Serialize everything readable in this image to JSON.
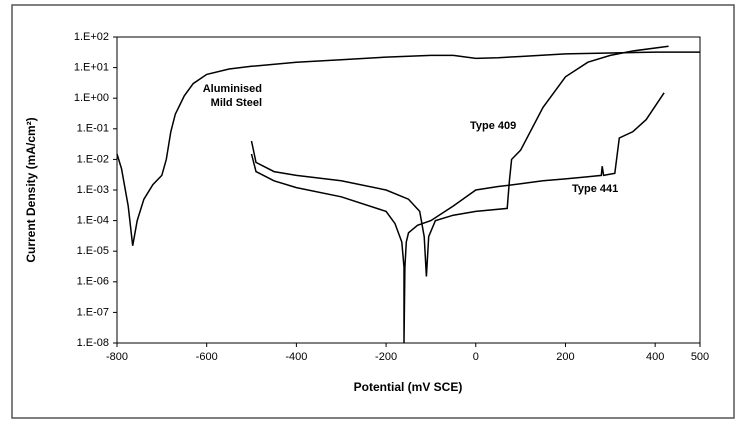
{
  "chart_data": {
    "type": "line",
    "yscale": "log",
    "grid": false,
    "xlabel": "Potential (mV SCE)",
    "ylabel": "Current Density (mA/cm²)",
    "xlim": [
      -800,
      500
    ],
    "xticks": [
      -800,
      -600,
      -400,
      -200,
      0,
      200,
      400,
      500
    ],
    "ylim": [
      1e-08,
      100
    ],
    "yticks": [
      {
        "value": 1e-08,
        "label": "1.E-08"
      },
      {
        "value": 1e-07,
        "label": "1.E-07"
      },
      {
        "value": 1e-06,
        "label": "1.E-06"
      },
      {
        "value": 1e-05,
        "label": "1.E-05"
      },
      {
        "value": 0.0001,
        "label": "1.E-04"
      },
      {
        "value": 0.001,
        "label": "1.E-03"
      },
      {
        "value": 0.01,
        "label": "1.E-02"
      },
      {
        "value": 0.1,
        "label": "1.E-01"
      },
      {
        "value": 1,
        "label": "1.E+00"
      },
      {
        "value": 10,
        "label": "1.E+01"
      },
      {
        "value": 100,
        "label": "1.E+02"
      }
    ],
    "series": [
      {
        "color": "#000000",
        "x": [
          -800,
          -790,
          -775,
          -765,
          -755,
          -740,
          -720,
          -700,
          -690,
          -680,
          -670,
          -660,
          -650,
          -630,
          -600,
          -550,
          -500,
          -400,
          -300,
          -200,
          -100,
          -50,
          0,
          50,
          100,
          200,
          300,
          400,
          500
        ],
        "values": [
          0.015,
          0.005,
          0.0003,
          1.5e-05,
          0.0001,
          0.0005,
          0.0015,
          0.003,
          0.01,
          0.08,
          0.3,
          0.6,
          1.2,
          3,
          6,
          9,
          11,
          15,
          18,
          22,
          25,
          25,
          20,
          21,
          23,
          28,
          30,
          32,
          32
        ]
      },
      {
        "color": "#000000",
        "x": [
          -500,
          -490,
          -450,
          -400,
          -300,
          -200,
          -150,
          -125,
          -115,
          -110,
          -105,
          -90,
          -50,
          0,
          70,
          75,
          80,
          100,
          150,
          200,
          250,
          300,
          350,
          430
        ],
        "values": [
          0.04,
          0.008,
          0.004,
          0.003,
          0.002,
          0.001,
          0.0005,
          0.0002,
          3e-05,
          1.5e-06,
          3e-05,
          0.0001,
          0.00015,
          0.0002,
          0.00025,
          0.002,
          0.01,
          0.02,
          0.5,
          5,
          15,
          25,
          35,
          50
        ]
      },
      {
        "color": "#000000",
        "x": [
          -500,
          -490,
          -450,
          -400,
          -300,
          -200,
          -180,
          -165,
          -160,
          -160,
          -158,
          -155,
          -150,
          -130,
          -100,
          -50,
          0,
          50,
          100,
          150,
          200,
          250,
          280,
          282,
          285,
          300,
          310,
          320,
          350,
          380,
          420
        ],
        "values": [
          0.015,
          0.004,
          0.002,
          0.0012,
          0.0006,
          0.0002,
          8e-05,
          2e-05,
          3e-06,
          1e-08,
          3e-06,
          2e-05,
          4e-05,
          7e-05,
          0.0001,
          0.0003,
          0.001,
          0.0013,
          0.0016,
          0.002,
          0.0023,
          0.0027,
          0.003,
          0.006,
          0.003,
          0.0033,
          0.0035,
          0.05,
          0.08,
          0.2,
          1.5
        ]
      }
    ],
    "annotations": [
      "Aluminised",
      "Mild Steel",
      "Type 409",
      "Type 441"
    ]
  }
}
